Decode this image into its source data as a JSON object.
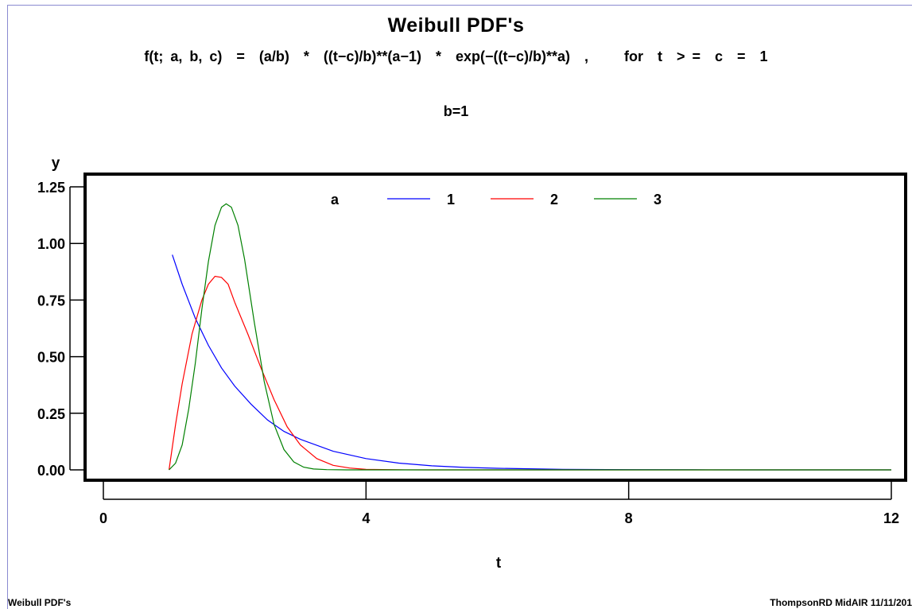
{
  "title": "Weibull PDF's",
  "formula": "f(t; a, b, c)  =  (a/b)  *  ((t−c)/b)**(a−1)  *  exp(−((t−c)/b)**a)  ,     for  t  > =  c  =  1",
  "param_label": "b=1",
  "footer_left": "Weibull PDF's",
  "footer_right": "ThompsonRD  MidAIR  11/11/201",
  "colors": {
    "a1": "#0000ff",
    "a2": "#ff0000",
    "a3": "#008000"
  },
  "chart_data": {
    "type": "line",
    "xlabel": "t",
    "ylabel": "y",
    "xlim": [
      0,
      12
    ],
    "ylim": [
      0,
      1.25
    ],
    "xticks": [
      "0",
      "4",
      "8",
      "12"
    ],
    "yticks": [
      "0.00",
      "0.25",
      "0.50",
      "0.75",
      "1.00",
      "1.25"
    ],
    "grid": false,
    "legend": {
      "title": "a",
      "placement": "top-center"
    },
    "series": [
      {
        "name": "1",
        "color": "#0000ff",
        "x": [
          1.05,
          1.2,
          1.4,
          1.6,
          1.8,
          2.0,
          2.25,
          2.5,
          2.75,
          3.0,
          3.5,
          4.0,
          4.5,
          5.0,
          5.5,
          6.0,
          7.0,
          8.0,
          9.0,
          10.0,
          11.0,
          12.0
        ],
        "y": [
          0.95,
          0.82,
          0.67,
          0.55,
          0.45,
          0.37,
          0.29,
          0.22,
          0.17,
          0.135,
          0.082,
          0.05,
          0.03,
          0.018,
          0.011,
          0.007,
          0.0025,
          0.001,
          0.0003,
          0.0001,
          0.0,
          0.0
        ]
      },
      {
        "name": "2",
        "color": "#ff0000",
        "x": [
          1.0,
          1.1,
          1.2,
          1.35,
          1.5,
          1.6,
          1.7,
          1.8,
          1.9,
          2.0,
          2.2,
          2.4,
          2.6,
          2.8,
          3.0,
          3.25,
          3.5,
          3.75,
          4.0,
          4.5,
          5.0,
          6.0,
          8.0,
          12.0
        ],
        "y": [
          0.0,
          0.2,
          0.38,
          0.6,
          0.75,
          0.82,
          0.855,
          0.85,
          0.82,
          0.74,
          0.6,
          0.45,
          0.31,
          0.19,
          0.11,
          0.05,
          0.02,
          0.008,
          0.002,
          0.0003,
          0.0,
          0.0,
          0.0,
          0.0
        ]
      },
      {
        "name": "3",
        "color": "#008000",
        "x": [
          1.0,
          1.1,
          1.2,
          1.3,
          1.4,
          1.5,
          1.6,
          1.7,
          1.8,
          1.87,
          1.95,
          2.05,
          2.15,
          2.3,
          2.45,
          2.6,
          2.75,
          2.9,
          3.05,
          3.2,
          3.4,
          3.7,
          4.0,
          6.0,
          8.0,
          12.0
        ],
        "y": [
          0.0,
          0.03,
          0.11,
          0.27,
          0.47,
          0.71,
          0.92,
          1.08,
          1.16,
          1.175,
          1.16,
          1.08,
          0.93,
          0.65,
          0.39,
          0.2,
          0.09,
          0.035,
          0.012,
          0.004,
          0.001,
          0.0,
          0.0,
          0.0,
          0.0,
          0.0
        ]
      }
    ]
  }
}
